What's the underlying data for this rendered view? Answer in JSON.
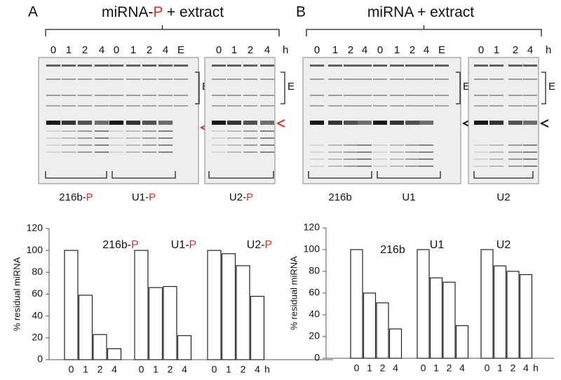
{
  "highlight_color": "#d0312d",
  "panels": [
    {
      "letter": "A",
      "title_parts": [
        "miRNA-",
        "P",
        " + extract"
      ],
      "title_highlight": 1,
      "gels": [
        {
          "lanes": [
            "0",
            "1",
            "2",
            "4",
            "0",
            "1",
            "2",
            "4",
            "E"
          ],
          "bracket": "E",
          "groups": [
            {
              "parts": [
                "216b-",
                "P"
              ]
            },
            {
              "parts": [
                "U1-",
                "P"
              ]
            }
          ]
        },
        {
          "lanes": [
            "0",
            "1",
            "2",
            "4"
          ],
          "unit": "h",
          "bracket": "E",
          "groups": [
            {
              "parts": [
                "U2-",
                "P"
              ]
            }
          ]
        }
      ]
    },
    {
      "letter": "B",
      "title_parts": [
        "miRNA + extract"
      ],
      "gels": [
        {
          "lanes": [
            "0",
            "1",
            "2",
            "4",
            "0",
            "1",
            "2",
            "4",
            "E"
          ],
          "bracket": "E",
          "groups": [
            {
              "parts": [
                "216b"
              ]
            },
            {
              "parts": [
                "U1"
              ]
            }
          ]
        },
        {
          "lanes": [
            "0",
            "1",
            "2",
            "4"
          ],
          "unit": "h",
          "bracket": "E",
          "groups": [
            {
              "parts": [
                "U2"
              ]
            }
          ]
        }
      ]
    }
  ],
  "chart_data": [
    {
      "type": "bar",
      "ylabel": "% residual miRNA",
      "ylim": [
        0,
        120
      ],
      "yticks": [
        0,
        20,
        40,
        60,
        80,
        100,
        120
      ],
      "categories": [
        "0",
        "1",
        "2",
        "4"
      ],
      "x_unit": "h",
      "color": "#ffffff",
      "groups": [
        {
          "parts": [
            "216b-",
            "P"
          ],
          "values": [
            100,
            59,
            23,
            10
          ]
        },
        {
          "parts": [
            "U1-",
            "P"
          ],
          "values": [
            100,
            66,
            67,
            22
          ]
        },
        {
          "parts": [
            "U2-",
            "P"
          ],
          "values": [
            100,
            97,
            86,
            58
          ]
        }
      ]
    },
    {
      "type": "bar",
      "ylabel": "% residual miRNA",
      "ylim": [
        0,
        120
      ],
      "yticks": [
        0,
        20,
        40,
        60,
        80,
        100,
        120
      ],
      "categories": [
        "0",
        "1",
        "2",
        "4"
      ],
      "x_unit": "h",
      "color": "#ffffff",
      "groups": [
        {
          "parts": [
            "216b"
          ],
          "values": [
            100,
            60,
            51,
            27
          ]
        },
        {
          "parts": [
            "U1"
          ],
          "values": [
            100,
            74,
            70,
            30
          ]
        },
        {
          "parts": [
            "U2"
          ],
          "values": [
            100,
            85,
            80,
            77
          ]
        }
      ]
    }
  ]
}
